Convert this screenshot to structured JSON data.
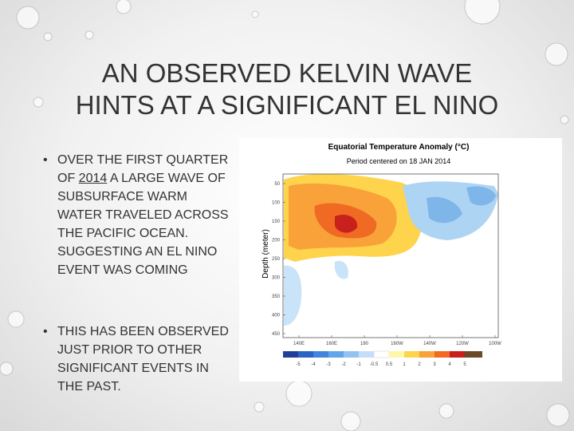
{
  "title": [
    "AN OBSERVED KELVIN WAVE",
    "HINTS AT A SIGNIFICANT EL NINO"
  ],
  "bullets": [
    {
      "before": "OVER THE FIRST QUARTER OF ",
      "underlined": "2014",
      "after": " A LARGE WAVE OF SUBSURFACE WARM WATER TRAVELED ACROSS THE PACIFIC OCEAN.  SUGGESTING AN EL NINO EVENT WAS COMING"
    },
    {
      "text": "THIS HAS BEEN OBSERVED JUST PRIOR TO OTHER SIGNIFICANT EVENTS IN THE PAST."
    }
  ],
  "figure": {
    "title": "Equatorial Temperature Anomaly (°C)",
    "subtitle": "Period centered on 18 JAN 2014",
    "y_label": "Depth (meter)",
    "y_ticks": [
      "50",
      "100",
      "150",
      "200",
      "250",
      "300",
      "350",
      "400",
      "450"
    ],
    "x_ticks": [
      "140E",
      "160E",
      "180",
      "160W",
      "140W",
      "120W",
      "100W"
    ],
    "colorbar_labels": [
      "-5",
      "-4",
      "-3",
      "-2",
      "-1",
      "-0.5",
      "0.5",
      "1",
      "2",
      "3",
      "4",
      "5"
    ]
  }
}
